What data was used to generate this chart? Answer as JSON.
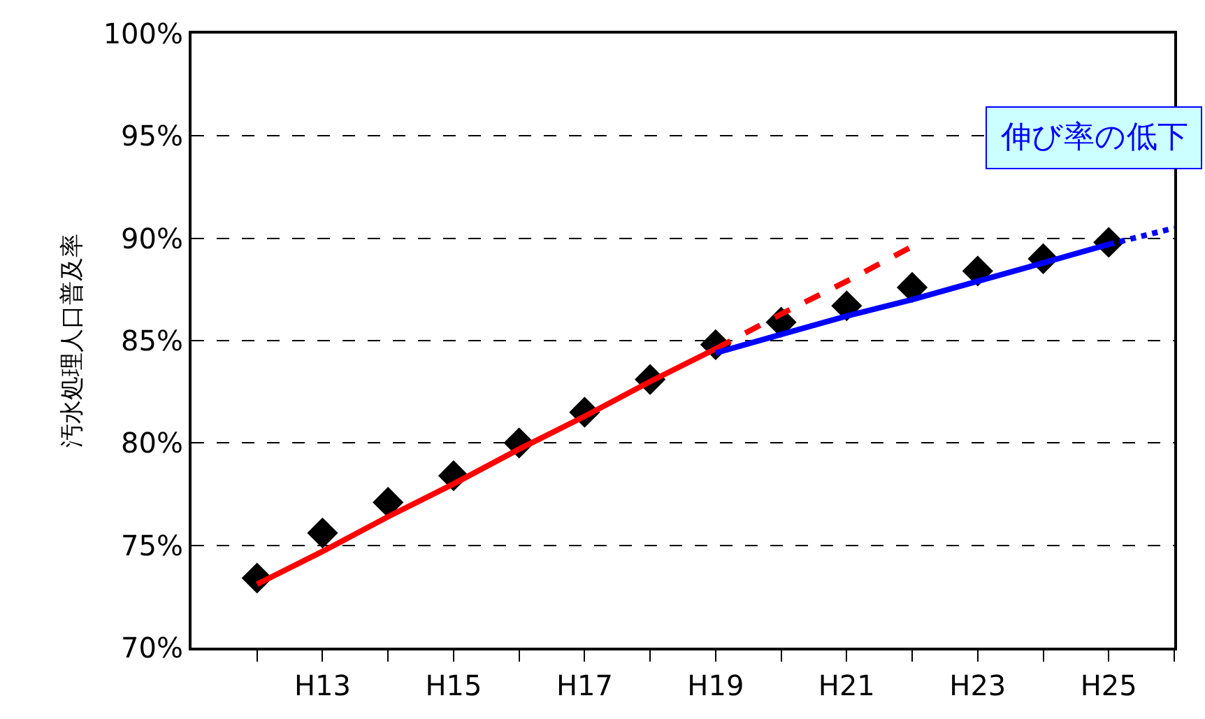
{
  "chart_data": {
    "type": "scatter",
    "ylabel": "汚水処理人口普及率",
    "categories": [
      null,
      "H13",
      null,
      "H15",
      null,
      "H17",
      null,
      "H19",
      null,
      "H21",
      null,
      "H23",
      null,
      "H25",
      null
    ],
    "series": [
      {
        "color": "#000000",
        "marker": "diamond",
        "values": [
          73.4,
          75.6,
          77.1,
          78.4,
          80.0,
          81.5,
          83.1,
          84.8,
          85.9,
          86.7,
          87.6,
          88.4,
          89.0,
          89.8,
          null
        ]
      },
      {
        "type": "line",
        "color": "#ff0000",
        "line_style": "solid",
        "values": [
          73.1,
          74.7,
          76.4,
          78.0,
          79.7,
          81.3,
          83.0,
          84.6,
          null,
          null,
          null,
          null,
          null,
          null,
          null
        ]
      },
      {
        "type": "line",
        "color": "#ff0000",
        "line_style": "dashed",
        "values": [
          null,
          null,
          null,
          null,
          null,
          null,
          null,
          84.6,
          86.3,
          87.9,
          89.6,
          null,
          null,
          null,
          null
        ]
      },
      {
        "type": "line",
        "color": "#0000ff",
        "line_style": "solid",
        "values": [
          null,
          null,
          null,
          null,
          null,
          null,
          null,
          84.4,
          85.3,
          86.2,
          87.0,
          87.9,
          88.8,
          89.7,
          null
        ]
      },
      {
        "type": "line",
        "color": "#0000ff",
        "line_style": "dotted",
        "values": [
          null,
          null,
          null,
          null,
          null,
          null,
          null,
          null,
          null,
          null,
          null,
          null,
          null,
          89.7,
          90.5
        ]
      }
    ],
    "ylim": [
      70,
      100
    ],
    "yticks": [
      {
        "value": 70,
        "label": "70%"
      },
      {
        "value": 75,
        "label": "75%"
      },
      {
        "value": 80,
        "label": "80%"
      },
      {
        "value": 85,
        "label": "85%"
      },
      {
        "value": 90,
        "label": "90%"
      },
      {
        "value": 95,
        "label": "95%"
      },
      {
        "value": 100,
        "label": "100%"
      }
    ],
    "grid": "y",
    "annotations": [
      "伸び率の低下"
    ]
  }
}
